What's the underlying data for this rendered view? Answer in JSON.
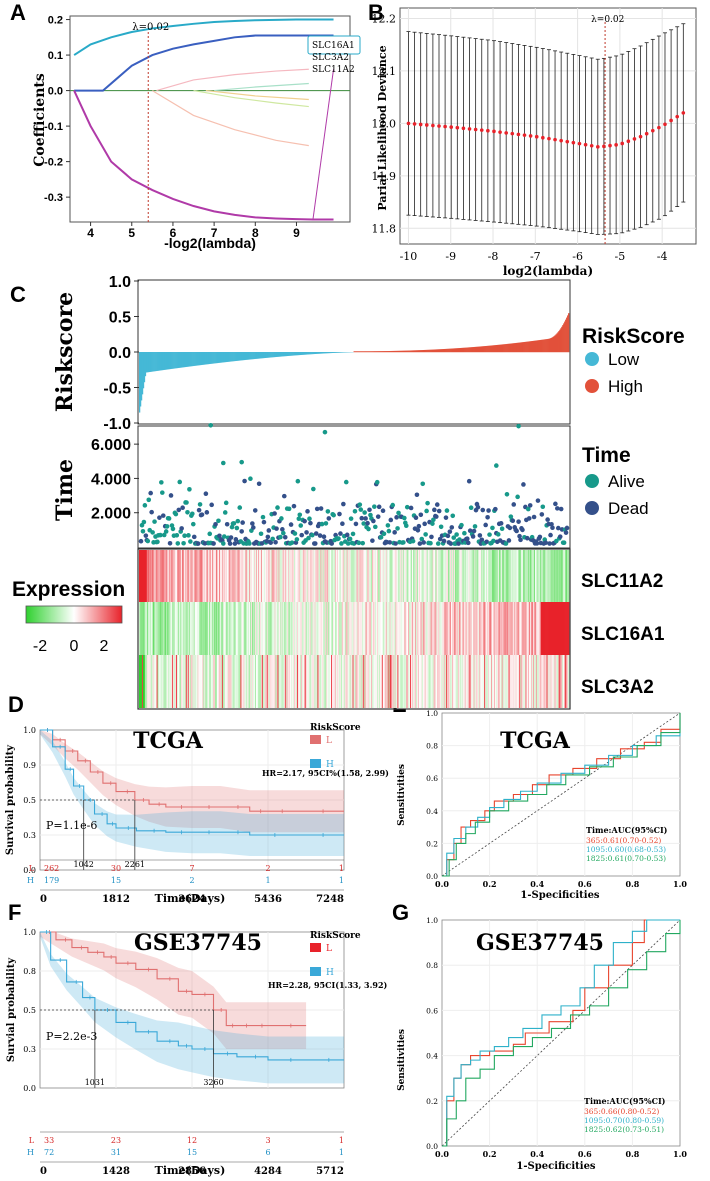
{
  "panel_letters": [
    "A",
    "B",
    "C",
    "D",
    "E",
    "F",
    "G"
  ],
  "colors": {
    "low": "#45b8d6",
    "high": "#e2513a",
    "alive": "#17998a",
    "dead": "#34508a",
    "km_low": "#e07070",
    "km_high": "#3aa8d8",
    "roc365": "#e8452e",
    "roc1095": "#2eb1c9",
    "roc1825": "#22a860"
  },
  "chart_data": [
    {
      "id": "A",
      "type": "line",
      "xlabel": "-log2(lambda)",
      "ylabel": "Coefficients",
      "xlim": [
        3.5,
        10.3
      ],
      "ylim": [
        -0.37,
        0.21
      ],
      "xticks": [
        "4",
        "5",
        "6",
        "7",
        "8",
        "9"
      ],
      "yticks": [
        "0.2",
        "0.1",
        "0.0",
        "-0.1",
        "-0.2",
        "-0.3"
      ],
      "lambda_label": "λ=0.02",
      "lambda_x": 5.4,
      "legend": [
        "SLC16A1",
        "SLC3A2",
        "SLC11A2"
      ],
      "series": [
        {
          "name": "SLC16A1",
          "color": "#29aac8",
          "x": [
            3.6,
            4,
            4.5,
            5,
            5.5,
            6,
            6.5,
            7,
            7.5,
            8,
            8.5,
            9,
            9.5,
            9.9
          ],
          "y": [
            0.1,
            0.13,
            0.15,
            0.165,
            0.175,
            0.182,
            0.188,
            0.193,
            0.196,
            0.198,
            0.199,
            0.2,
            0.2,
            0.2
          ]
        },
        {
          "name": "SLC3A2",
          "color": "#3a5fc0",
          "x": [
            3.6,
            4.3,
            4.6,
            5,
            5.5,
            6,
            6.5,
            7,
            7.5,
            8,
            8.5,
            9,
            9.9
          ],
          "y": [
            0,
            0,
            0.03,
            0.07,
            0.1,
            0.118,
            0.13,
            0.14,
            0.15,
            0.155,
            0.155,
            0.155,
            0.155
          ]
        },
        {
          "name": "SLC11A2",
          "color": "#b03aa8",
          "x": [
            3.6,
            4,
            4.5,
            5,
            5.5,
            6,
            6.5,
            7,
            7.5,
            8,
            8.5,
            9,
            9.4,
            9.9
          ],
          "y": [
            0,
            -0.1,
            -0.2,
            -0.25,
            -0.28,
            -0.305,
            -0.325,
            -0.34,
            -0.35,
            -0.357,
            -0.36,
            -0.362,
            -0.363,
            -0.363
          ]
        },
        {
          "name": "minor1",
          "color": "#f5b8c0",
          "x": [
            5.6,
            6.5,
            7.5,
            8.5,
            9.3
          ],
          "y": [
            0,
            0.03,
            0.045,
            0.055,
            0.06
          ]
        },
        {
          "name": "minor2",
          "color": "#f6c0b0",
          "x": [
            5.5,
            6.5,
            7.5,
            8.5,
            9.3
          ],
          "y": [
            0,
            -0.07,
            -0.11,
            -0.14,
            -0.155
          ]
        },
        {
          "name": "minor3",
          "color": "#cfe8a0",
          "x": [
            6.5,
            7.5,
            8.5,
            9.3
          ],
          "y": [
            0,
            -0.02,
            -0.035,
            -0.045
          ]
        },
        {
          "name": "minor4",
          "color": "#a8e0c8",
          "x": [
            7,
            8,
            9.3
          ],
          "y": [
            0,
            0.01,
            0.02
          ]
        },
        {
          "name": "minor5",
          "color": "#f0d090",
          "x": [
            6.8,
            8,
            9.3
          ],
          "y": [
            0,
            -0.015,
            -0.025
          ]
        }
      ]
    },
    {
      "id": "B",
      "type": "errorbar",
      "xlabel": "log2(lambda)",
      "ylabel": "Parial Likelihood Deviance",
      "xlim": [
        -10.2,
        -3.2
      ],
      "ylim": [
        11.77,
        12.22
      ],
      "xticks": [
        "-10",
        "-9",
        "-8",
        "-7",
        "-6",
        "-5",
        "-4"
      ],
      "yticks": [
        "12.2",
        "12.1",
        "12.0",
        "11.9",
        "11.8"
      ],
      "lambda_label": "λ=0.02",
      "lambda_x": -5.35,
      "x_start": -10,
      "x_end": -3.5,
      "n_points": 46,
      "curve_x": [
        -10,
        -9,
        -8,
        -7,
        -6,
        -5.5,
        -5,
        -4.5,
        -4,
        -3.5
      ],
      "curve_y": [
        12.0,
        11.993,
        11.985,
        11.975,
        11.962,
        11.955,
        11.96,
        11.975,
        11.995,
        12.02
      ],
      "halfwidth_x": [
        -10,
        -8,
        -6,
        -5.5,
        -5,
        -4.5,
        -4,
        -3.5
      ],
      "halfwidth_y": [
        0.175,
        0.173,
        0.168,
        0.167,
        0.17,
        0.173,
        0.175,
        0.17
      ]
    },
    {
      "id": "C1",
      "type": "bar",
      "ylabel": "Riskscore",
      "ylim": [
        -1.0,
        1.0
      ],
      "yticks": [
        "1.0",
        "0.5",
        "0.0",
        "-0.5",
        "-1.0"
      ],
      "legend_title": "RiskScore",
      "legend": [
        "Low",
        "High"
      ],
      "n_samples": 441,
      "n_low": 220
    },
    {
      "id": "C2",
      "type": "scatter",
      "ylabel": "Time",
      "ylim": [
        0,
        7000
      ],
      "yticks": [
        "6.000",
        "4.000",
        "2.000"
      ],
      "legend_title": "Time",
      "legend": [
        "Alive",
        "Dead"
      ],
      "notable_points": [
        [
          72,
          7100
        ],
        [
          85,
          4900
        ],
        [
          104,
          4950
        ],
        [
          190,
          6700
        ],
        [
          390,
          7050
        ],
        [
          367,
          4750
        ]
      ]
    },
    {
      "id": "C3",
      "type": "heatmap",
      "title": "Expression",
      "scale_ticks": [
        "-2",
        "0",
        "2"
      ],
      "rows": [
        "SLC11A2",
        "SLC16A1",
        "SLC3A2"
      ]
    },
    {
      "id": "D",
      "type": "line",
      "title": "TCGA",
      "xlabel": "Time(Days)",
      "ylabel": "Survival probability",
      "legend_title": "RiskScore",
      "legend": [
        "L",
        "H"
      ],
      "hr": "HR=2.17, 95CI%(1.58, 2.99)",
      "pvalue": "P=1.1e-6",
      "xticks": [
        "0",
        "1812",
        "3624",
        "5436",
        "7248"
      ],
      "yticks": [
        "1.0",
        "0.9",
        "0.5",
        "0.3",
        "0.0"
      ],
      "median_labels": [
        "1042",
        "2261"
      ],
      "risk_L": [
        "262",
        "30",
        "7",
        "2",
        "1"
      ],
      "risk_H": [
        "179",
        "15",
        "2",
        "1",
        "1"
      ],
      "series": [
        {
          "name": "L",
          "x": [
            0,
            300,
            600,
            900,
            1200,
            1500,
            1812,
            2261,
            2600,
            3000,
            3624,
            4300,
            5000,
            5436,
            6000,
            7248
          ],
          "y": [
            1.0,
            0.93,
            0.85,
            0.78,
            0.7,
            0.62,
            0.56,
            0.5,
            0.47,
            0.45,
            0.45,
            0.45,
            0.42,
            0.42,
            0.42,
            0.42
          ]
        },
        {
          "name": "H",
          "x": [
            0,
            300,
            600,
            800,
            1042,
            1300,
            1600,
            1812,
            2300,
            3000,
            3624,
            4300,
            5000,
            6000,
            7248
          ],
          "y": [
            1.0,
            0.88,
            0.72,
            0.6,
            0.5,
            0.4,
            0.33,
            0.3,
            0.28,
            0.27,
            0.27,
            0.27,
            0.25,
            0.25,
            0.25
          ]
        }
      ]
    },
    {
      "id": "E",
      "type": "line",
      "title": "TCGA",
      "xlabel": "1-Specificities",
      "ylabel": "Sensitivities",
      "xticks": [
        "0.0",
        "0.2",
        "0.4",
        "0.6",
        "0.8",
        "1.0"
      ],
      "yticks": [
        "0.0",
        "0.2",
        "0.4",
        "0.6",
        "0.8",
        "1.0"
      ],
      "legend_title": "Time:AUC(95%CI)",
      "legend": [
        "365:0.61(0.70-0.52)",
        "1095:0.60(0.68-0.53)",
        "1825:0.61(0.70-0.53)"
      ],
      "series": [
        {
          "name": "365",
          "x": [
            0,
            0.02,
            0.05,
            0.08,
            0.12,
            0.18,
            0.22,
            0.3,
            0.38,
            0.45,
            0.55,
            0.65,
            0.75,
            0.85,
            0.92,
            1
          ],
          "y": [
            0,
            0.1,
            0.2,
            0.3,
            0.34,
            0.4,
            0.46,
            0.5,
            0.56,
            0.62,
            0.66,
            0.72,
            0.78,
            0.82,
            0.9,
            1
          ]
        },
        {
          "name": "1095",
          "x": [
            0,
            0.02,
            0.05,
            0.1,
            0.15,
            0.2,
            0.26,
            0.33,
            0.4,
            0.5,
            0.6,
            0.7,
            0.8,
            0.9,
            1
          ],
          "y": [
            0,
            0.14,
            0.23,
            0.3,
            0.36,
            0.42,
            0.47,
            0.52,
            0.57,
            0.63,
            0.68,
            0.74,
            0.8,
            0.86,
            1
          ]
        },
        {
          "name": "1825",
          "x": [
            0,
            0.03,
            0.06,
            0.1,
            0.14,
            0.2,
            0.28,
            0.36,
            0.44,
            0.52,
            0.62,
            0.72,
            0.82,
            0.92,
            1
          ],
          "y": [
            0,
            0.1,
            0.2,
            0.26,
            0.33,
            0.4,
            0.46,
            0.5,
            0.56,
            0.62,
            0.67,
            0.73,
            0.8,
            0.88,
            1
          ]
        }
      ]
    },
    {
      "id": "F",
      "type": "line",
      "title": "GSE37745",
      "xlabel": "Time(Days)",
      "ylabel": "Survial probability",
      "legend_title": "RiskScore",
      "legend": [
        "L",
        "H"
      ],
      "hr": "HR=2.28, 95CI(1.33, 3.92)",
      "pvalue": "P=2.2e-3",
      "xticks": [
        "0",
        "1428",
        "2856",
        "4284",
        "5712"
      ],
      "yticks": [
        "1.0",
        "0.8",
        "0.5",
        "0.3",
        "0.0"
      ],
      "median_labels": [
        "1031",
        "3260"
      ],
      "risk_L": [
        "33",
        "23",
        "12",
        "3",
        "1"
      ],
      "risk_H": [
        "72",
        "31",
        "15",
        "6",
        "1"
      ],
      "series": [
        {
          "name": "L",
          "x": [
            0,
            300,
            600,
            900,
            1200,
            1428,
            1800,
            2200,
            2600,
            2856,
            3260,
            3500,
            3700,
            4000,
            4284,
            5000
          ],
          "y": [
            1.0,
            0.95,
            0.9,
            0.87,
            0.84,
            0.8,
            0.76,
            0.7,
            0.62,
            0.6,
            0.5,
            0.4,
            0.4,
            0.4,
            0.4,
            0.4
          ]
        },
        {
          "name": "H",
          "x": [
            0,
            200,
            500,
            800,
            1031,
            1428,
            1800,
            2200,
            2600,
            2856,
            3260,
            3700,
            4284,
            5000,
            5712
          ],
          "y": [
            1.0,
            0.82,
            0.68,
            0.58,
            0.5,
            0.42,
            0.36,
            0.3,
            0.27,
            0.25,
            0.22,
            0.2,
            0.18,
            0.18,
            0.18
          ]
        }
      ]
    },
    {
      "id": "G",
      "type": "line",
      "title": "GSE37745",
      "xlabel": "1-Specificities",
      "ylabel": "Sensitivities",
      "xticks": [
        "0.0",
        "0.2",
        "0.4",
        "0.6",
        "0.8",
        "1.0"
      ],
      "yticks": [
        "0.0",
        "0.2",
        "0.4",
        "0.6",
        "0.8",
        "1.0"
      ],
      "legend_title": "Time:AUC(95%CI)",
      "legend": [
        "365:0.66(0.80-0.52)",
        "1095:0.70(0.80-0.59)",
        "1825:0.62(0.73-0.51)"
      ],
      "series": [
        {
          "name": "365",
          "x": [
            0,
            0.02,
            0.05,
            0.08,
            0.12,
            0.16,
            0.2,
            0.25,
            0.3,
            0.35,
            0.45,
            0.55,
            0.6,
            0.7,
            0.8,
            0.85,
            0.9,
            1
          ],
          "y": [
            0,
            0.2,
            0.3,
            0.36,
            0.4,
            0.4,
            0.42,
            0.42,
            0.45,
            0.5,
            0.55,
            0.6,
            0.7,
            0.8,
            0.9,
            1,
            1,
            1
          ]
        },
        {
          "name": "1095",
          "x": [
            0,
            0.02,
            0.05,
            0.08,
            0.12,
            0.16,
            0.22,
            0.28,
            0.34,
            0.42,
            0.5,
            0.58,
            0.64,
            0.72,
            0.8,
            0.86,
            1
          ],
          "y": [
            0,
            0.22,
            0.3,
            0.36,
            0.38,
            0.42,
            0.44,
            0.48,
            0.52,
            0.58,
            0.62,
            0.7,
            0.8,
            0.9,
            0.95,
            1,
            1
          ]
        },
        {
          "name": "1825",
          "x": [
            0,
            0.02,
            0.06,
            0.1,
            0.16,
            0.22,
            0.3,
            0.38,
            0.46,
            0.54,
            0.62,
            0.7,
            0.78,
            0.86,
            0.94,
            1
          ],
          "y": [
            0,
            0.12,
            0.2,
            0.3,
            0.34,
            0.4,
            0.44,
            0.48,
            0.52,
            0.58,
            0.62,
            0.7,
            0.78,
            0.86,
            0.94,
            1
          ]
        }
      ]
    }
  ]
}
